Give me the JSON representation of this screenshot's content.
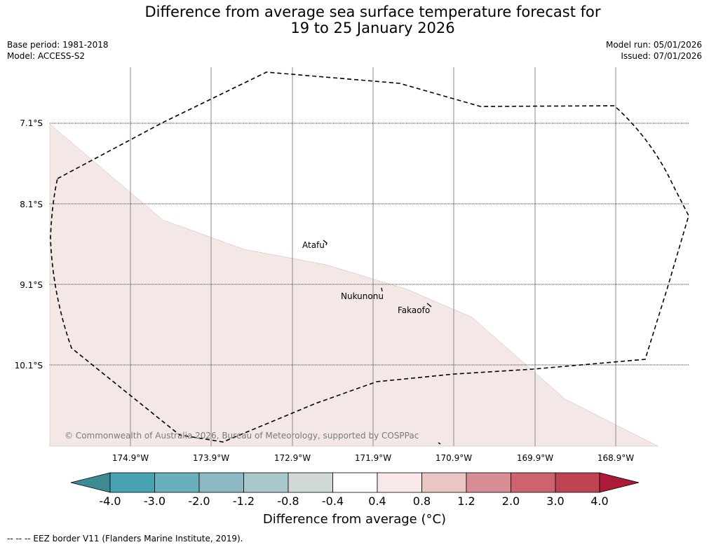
{
  "title": {
    "line1": "Difference from average sea surface temperature forecast for",
    "line2": "19 to 25 January 2026"
  },
  "meta_left": {
    "base_period": "Base period: 1981-2018",
    "model": "Model: ACCESS-S2"
  },
  "meta_right": {
    "model_run": "Model run: 05/01/2026",
    "issued": "Issued: 07/01/2026"
  },
  "map": {
    "lat_labels": [
      "7.1°S",
      "8.1°S",
      "9.1°S",
      "10.1°S"
    ],
    "lon_labels": [
      "174.9°W",
      "173.9°W",
      "172.9°W",
      "171.9°W",
      "170.9°W",
      "169.9°W",
      "168.9°W"
    ],
    "places": [
      "Atafu",
      "Nukunonu",
      "Fakaofo"
    ],
    "copyright": "© Commonwealth of Australia 2026, Bureau of Meteorology, supported by COSPPac",
    "anomaly_fill_color": "#f4e8e7",
    "anomaly_class": "0.4 to 0.8"
  },
  "colorbar": {
    "ticks": [
      "-4.0",
      "-3.0",
      "-2.0",
      "-1.2",
      "-0.8",
      "-0.4",
      "0.4",
      "0.8",
      "1.2",
      "2.0",
      "3.0",
      "4.0"
    ],
    "colors": [
      "#3d8a93",
      "#47a2b1",
      "#6aafbd",
      "#8db9c3",
      "#a9c8cc",
      "#d0d8d8",
      "#ffffff",
      "#f8e9e8",
      "#e9c6c3",
      "#d68e94",
      "#cc6470",
      "#bf4453",
      "#ad1a37"
    ],
    "label": "Difference from average (°C)"
  },
  "footer": "--  --  -- EEZ border V11 (Flanders Marine Institute, 2019)."
}
